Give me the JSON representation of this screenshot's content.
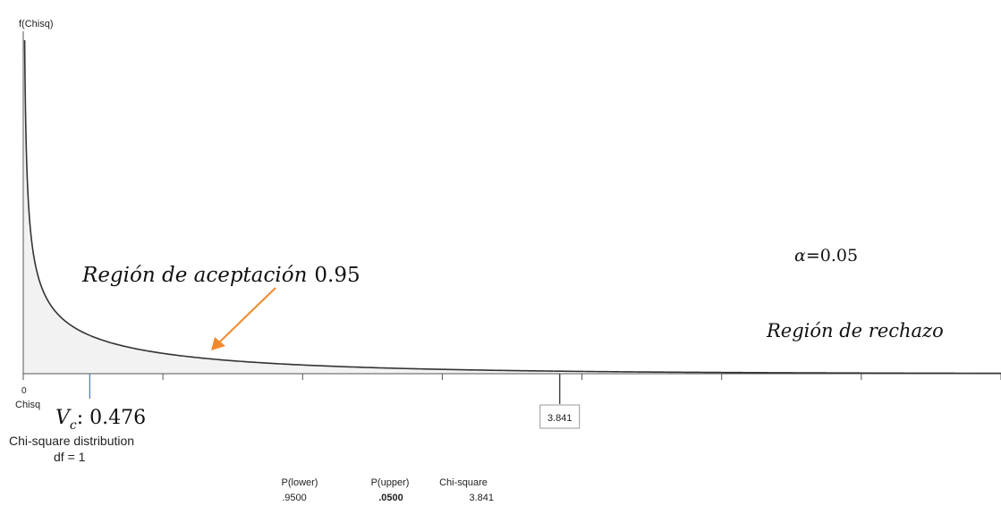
{
  "chart_data": {
    "type": "area",
    "distribution": "chi-square",
    "df": 1,
    "y_axis_label": "f(Chisq)",
    "x_axis_label": "Chisq",
    "x_origin_label": "0",
    "xlim": [
      0,
      7.0
    ],
    "curve_color": "#333333",
    "shaded_region": {
      "from": 0,
      "to": 3.841,
      "color": "#f2f2f2"
    },
    "critical_value": {
      "x": 3.841,
      "label": "3.841"
    },
    "computed_value": {
      "x": 0.476,
      "label_symbol": "V",
      "label_subscript": "c",
      "label_value": ": 0.476",
      "color": "#4a7ab5"
    },
    "annotations": {
      "acceptance_text": "Región de aceptación",
      "acceptance_value": "0.95",
      "alpha_symbol": "α",
      "alpha_value": "=0.05",
      "rejection_text": "Región de rechazo",
      "arrow_color": "#f08a2c"
    },
    "dist_name": "Chi-square distribution",
    "df_label": "df = 1",
    "table": {
      "headers": [
        "P(lower)",
        "P(upper)",
        "Chi-square"
      ],
      "values": [
        ".9500",
        ".0500",
        "3.841"
      ]
    }
  }
}
